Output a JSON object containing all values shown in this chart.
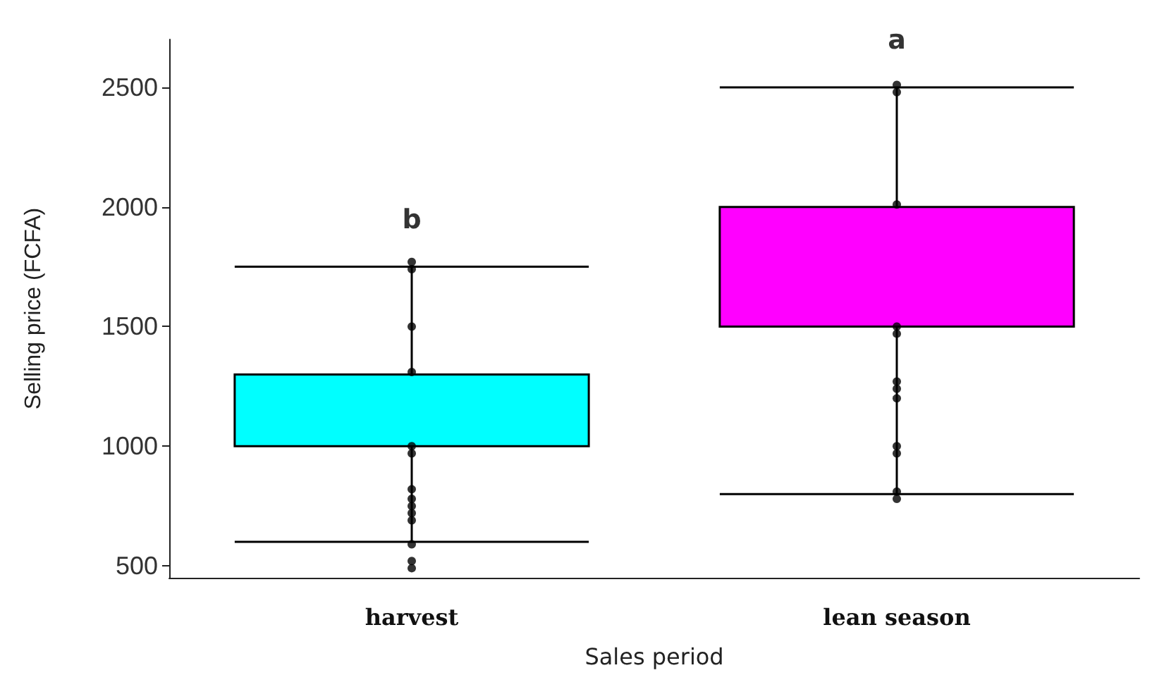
{
  "chart_data": {
    "type": "box",
    "xlabel": "Sales period",
    "ylabel": "Selling price (FCFA)",
    "categories": [
      "harvest",
      "lean season"
    ],
    "colors": [
      "#00ffff",
      "#ff00ff"
    ],
    "boxes": [
      {
        "low": 600,
        "q1": 1000,
        "median": 1000,
        "q3": 1300,
        "high": 1750
      },
      {
        "low": 800,
        "q1": 1500,
        "median": 1500,
        "q3": 2000,
        "high": 2500
      }
    ],
    "series": [
      {
        "type": "scatter",
        "color": "#000000",
        "marker": "circle",
        "x": [
          "harvest",
          "harvest",
          "harvest",
          "harvest",
          "harvest",
          "harvest",
          "harvest",
          "harvest",
          "harvest",
          "harvest",
          "harvest",
          "harvest",
          "harvest",
          "harvest"
        ],
        "values": [
          1770,
          1740,
          1500,
          1310,
          1000,
          970,
          820,
          780,
          750,
          720,
          690,
          590,
          520,
          490
        ]
      },
      {
        "type": "scatter",
        "color": "#000000",
        "marker": "circle",
        "x": [
          "lean season",
          "lean season",
          "lean season",
          "lean season",
          "lean season",
          "lean season",
          "lean season",
          "lean season",
          "lean season",
          "lean season",
          "lean season",
          "lean season"
        ],
        "values": [
          2510,
          2480,
          2010,
          1500,
          1470,
          1270,
          1240,
          1200,
          1000,
          970,
          810,
          780
        ]
      }
    ],
    "ylim": [
      450,
      2700
    ],
    "yticks": [
      500,
      1000,
      1500,
      2000,
      2500
    ],
    "grid": false,
    "annotations": [
      "b",
      "a"
    ]
  }
}
